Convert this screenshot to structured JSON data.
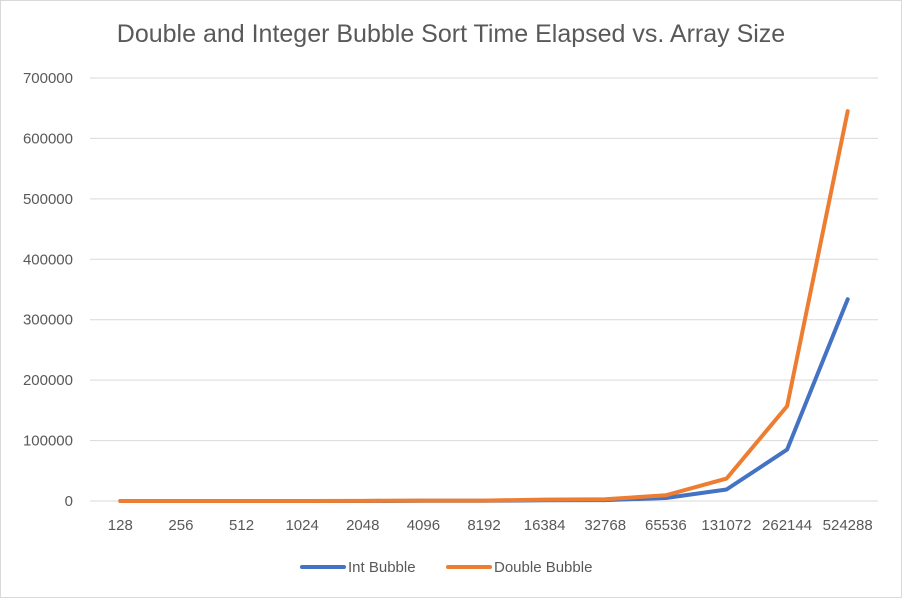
{
  "chart_data": {
    "type": "line",
    "title": "Double and Integer Bubble Sort Time Elapsed vs. Array Size",
    "xlabel": "",
    "ylabel": "",
    "categories": [
      "128",
      "256",
      "512",
      "1024",
      "2048",
      "4096",
      "8192",
      "16384",
      "32768",
      "65536",
      "131072",
      "262144",
      "524288"
    ],
    "ylim": [
      0,
      700000
    ],
    "yticks": [
      "0",
      "100000",
      "200000",
      "300000",
      "400000",
      "500000",
      "600000",
      "700000"
    ],
    "grid": true,
    "legend_position": "bottom",
    "series": [
      {
        "name": "Int Bubble",
        "color": "#4472c4",
        "values": [
          0,
          1,
          5,
          20,
          80,
          300,
          300,
          1200,
          1500,
          5000,
          19000,
          85000,
          334000
        ]
      },
      {
        "name": "Double Bubble",
        "color": "#ed7d31",
        "values": [
          0,
          2,
          10,
          40,
          150,
          600,
          600,
          2300,
          3000,
          9500,
          37000,
          157000,
          645000
        ]
      }
    ]
  }
}
